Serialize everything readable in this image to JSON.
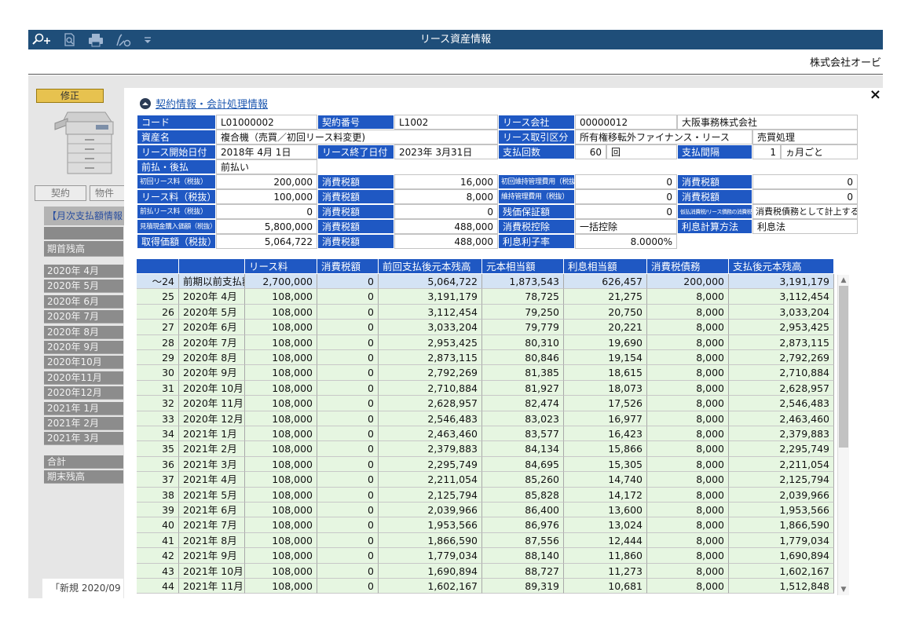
{
  "window": {
    "title": "リース資産情報",
    "company": "株式会社オービ",
    "toolbar_icons": [
      "search-plus-icon",
      "magnify-doc-icon",
      "printer-icon",
      "export-icon",
      "dropdown-icon"
    ]
  },
  "left_panel": {
    "edit_button": "修正",
    "tabs": [
      "契約",
      "物件"
    ],
    "panel_title": "【月次支払額情報",
    "opening_label": "期首残高",
    "months": [
      "2020年 4月",
      "2020年 5月",
      "2020年 6月",
      "2020年 7月",
      "2020年 8月",
      "2020年 9月",
      "2020年10月",
      "2020年11月",
      "2020年12月",
      "2021年 1月",
      "2021年 2月",
      "2021年 3月"
    ],
    "total_label": "合計",
    "closing_label": "期末残高",
    "footer_text": "「新規 2020/09"
  },
  "modal": {
    "section_title": "契約情報・会計処理情報",
    "close": "×",
    "info": {
      "r1": [
        "コード",
        "L01000002",
        "契約番号",
        "L1002",
        "リース会社",
        "00000012",
        "大阪事務株式会社"
      ],
      "r2": [
        "資産名",
        "複合機（売買／初回リース料変更)",
        "リース取引区分",
        "所有権移転外ファイナンス・リース",
        "売買処理"
      ],
      "r3": [
        "リース開始日付",
        "2018年  4月  1日",
        "リース終了日付",
        "2023年  3月31日",
        "支払回数",
        "60",
        "回",
        "支払間隔",
        "1",
        "ヵ月ごと"
      ],
      "r4": [
        "前払・後払",
        "前払い"
      ],
      "r5": [
        "初回リース料（税抜）",
        "200,000",
        "消費税額",
        "16,000",
        "初回維持管理費用（税抜）",
        "0",
        "消費税額",
        "0"
      ],
      "r6": [
        "リース料（税抜）",
        "100,000",
        "消費税額",
        "8,000",
        "維持管理費用（税抜）",
        "0",
        "消費税額",
        "0"
      ],
      "r7": [
        "前払リース料（税抜）",
        "0",
        "消費税額",
        "0",
        "残価保証額",
        "0",
        "仮払消費税/リース債務の消費税計上方法",
        "消費税債務として計上する"
      ],
      "r8": [
        "見積現金購入価額（税抜）",
        "5,800,000",
        "消費税額",
        "488,000",
        "消費税控除",
        "一括控除",
        "利息計算方法",
        "利息法"
      ],
      "r9": [
        "取得価額（税抜）",
        "5,064,722",
        "消費税額",
        "488,000",
        "利息利子率",
        "8.0000%"
      ]
    },
    "table": {
      "columns": [
        "",
        "",
        "リース料",
        "消費税額",
        "前回支払後元本残高",
        "元本相当額",
        "利息相当額",
        "消費税債務",
        "支払後元本残高"
      ],
      "rows": [
        [
          "～24",
          "前期以前支払額",
          "2,700,000",
          "0",
          "5,064,722",
          "1,873,543",
          "626,457",
          "200,000",
          "3,191,179"
        ],
        [
          "25",
          "2020年  4月",
          "108,000",
          "0",
          "3,191,179",
          "78,725",
          "21,275",
          "8,000",
          "3,112,454"
        ],
        [
          "26",
          "2020年  5月",
          "108,000",
          "0",
          "3,112,454",
          "79,250",
          "20,750",
          "8,000",
          "3,033,204"
        ],
        [
          "27",
          "2020年  6月",
          "108,000",
          "0",
          "3,033,204",
          "79,779",
          "20,221",
          "8,000",
          "2,953,425"
        ],
        [
          "28",
          "2020年  7月",
          "108,000",
          "0",
          "2,953,425",
          "80,310",
          "19,690",
          "8,000",
          "2,873,115"
        ],
        [
          "29",
          "2020年  8月",
          "108,000",
          "0",
          "2,873,115",
          "80,846",
          "19,154",
          "8,000",
          "2,792,269"
        ],
        [
          "30",
          "2020年  9月",
          "108,000",
          "0",
          "2,792,269",
          "81,385",
          "18,615",
          "8,000",
          "2,710,884"
        ],
        [
          "31",
          "2020年 10月",
          "108,000",
          "0",
          "2,710,884",
          "81,927",
          "18,073",
          "8,000",
          "2,628,957"
        ],
        [
          "32",
          "2020年 11月",
          "108,000",
          "0",
          "2,628,957",
          "82,474",
          "17,526",
          "8,000",
          "2,546,483"
        ],
        [
          "33",
          "2020年 12月",
          "108,000",
          "0",
          "2,546,483",
          "83,023",
          "16,977",
          "8,000",
          "2,463,460"
        ],
        [
          "34",
          "2021年  1月",
          "108,000",
          "0",
          "2,463,460",
          "83,577",
          "16,423",
          "8,000",
          "2,379,883"
        ],
        [
          "35",
          "2021年  2月",
          "108,000",
          "0",
          "2,379,883",
          "84,134",
          "15,866",
          "8,000",
          "2,295,749"
        ],
        [
          "36",
          "2021年  3月",
          "108,000",
          "0",
          "2,295,749",
          "84,695",
          "15,305",
          "8,000",
          "2,211,054"
        ],
        [
          "37",
          "2021年  4月",
          "108,000",
          "0",
          "2,211,054",
          "85,260",
          "14,740",
          "8,000",
          "2,125,794"
        ],
        [
          "38",
          "2021年  5月",
          "108,000",
          "0",
          "2,125,794",
          "85,828",
          "14,172",
          "8,000",
          "2,039,966"
        ],
        [
          "39",
          "2021年  6月",
          "108,000",
          "0",
          "2,039,966",
          "86,400",
          "13,600",
          "8,000",
          "1,953,566"
        ],
        [
          "40",
          "2021年  7月",
          "108,000",
          "0",
          "1,953,566",
          "86,976",
          "13,024",
          "8,000",
          "1,866,590"
        ],
        [
          "41",
          "2021年  8月",
          "108,000",
          "0",
          "1,866,590",
          "87,556",
          "12,444",
          "8,000",
          "1,779,034"
        ],
        [
          "42",
          "2021年  9月",
          "108,000",
          "0",
          "1,779,034",
          "88,140",
          "11,860",
          "8,000",
          "1,690,894"
        ],
        [
          "43",
          "2021年 10月",
          "108,000",
          "0",
          "1,690,894",
          "88,727",
          "11,273",
          "8,000",
          "1,602,167"
        ],
        [
          "44",
          "2021年 11月",
          "108,000",
          "0",
          "1,602,167",
          "89,319",
          "10,681",
          "8,000",
          "1,512,848"
        ]
      ]
    }
  },
  "colors": {
    "titlebar": "#1f4e79",
    "label_blue": "#1f58c3",
    "row_green": "#e6f6e1",
    "row_first": "#d4e3f4",
    "edit_button": "#e7c24f"
  }
}
